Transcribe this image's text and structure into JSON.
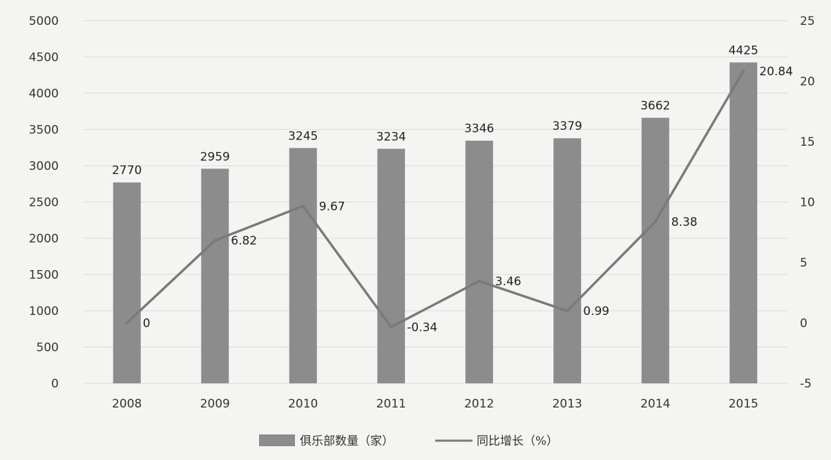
{
  "chart_data": {
    "type": "bar",
    "categories": [
      "2008",
      "2009",
      "2010",
      "2011",
      "2012",
      "2013",
      "2014",
      "2015"
    ],
    "series": [
      {
        "name": "俱乐部数量（家）",
        "type": "bar",
        "axis": "left",
        "values": [
          2770,
          2959,
          3245,
          3234,
          3346,
          3379,
          3662,
          4425
        ],
        "labels": [
          "2770",
          "2959",
          "3245",
          "3234",
          "3346",
          "3379",
          "3662",
          "4425"
        ],
        "color": "#8c8c8c"
      },
      {
        "name": "同比增长（%）",
        "type": "line",
        "axis": "right",
        "values": [
          0,
          6.82,
          9.67,
          -0.34,
          3.46,
          0.99,
          8.38,
          20.84
        ],
        "labels": [
          "0",
          "6.82",
          "9.67",
          "-0.34",
          "3.46",
          "0.99",
          "8.38",
          "20.84"
        ],
        "color": "#7a7a7a"
      }
    ],
    "y_left": {
      "lim": [
        0,
        5000
      ],
      "ticks": [
        "0",
        "500",
        "1000",
        "1500",
        "2000",
        "2500",
        "3000",
        "3500",
        "4000",
        "4500",
        "5000"
      ]
    },
    "y_right": {
      "lim": [
        -5,
        25
      ],
      "ticks": [
        "-5",
        "0",
        "5",
        "10",
        "15",
        "20",
        "25"
      ]
    },
    "grid": true,
    "legend": "bottom"
  }
}
